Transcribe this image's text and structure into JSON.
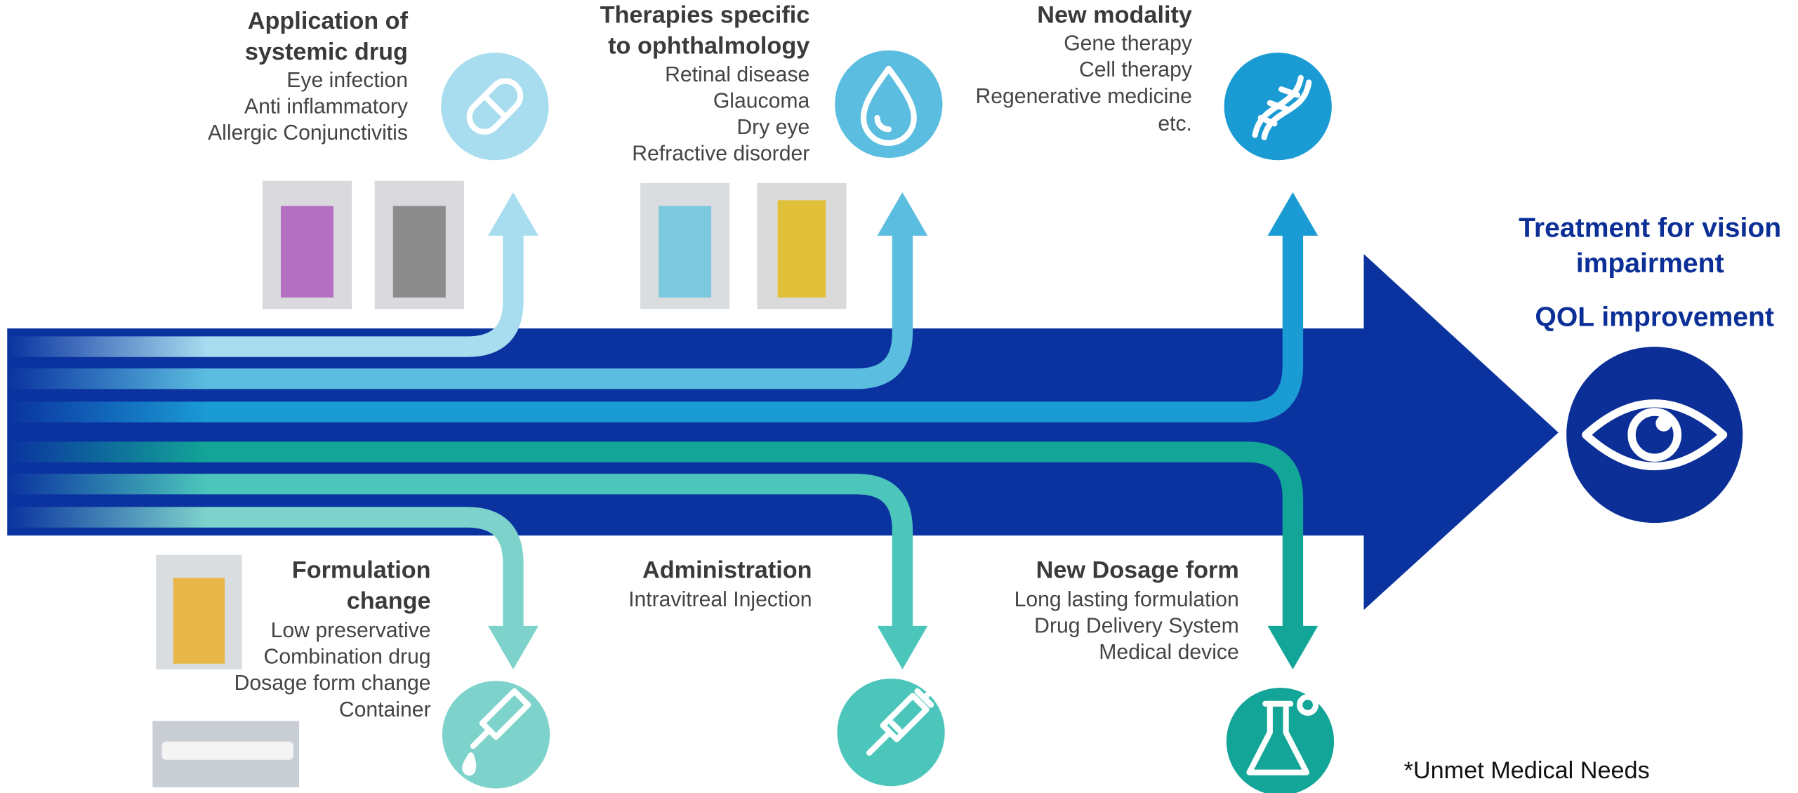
{
  "sections": [
    {
      "title": [
        "Application of",
        "systemic drug"
      ],
      "items": [
        "Eye infection",
        "Anti inflammatory",
        "Allergic Conjunctivitis"
      ]
    },
    {
      "title": [
        "Therapies specific",
        "to ophthalmology"
      ],
      "items": [
        "Retinal disease",
        "Glaucoma",
        "Dry eye",
        "Refractive disorder"
      ]
    },
    {
      "title": [
        "New modality"
      ],
      "items": [
        "Gene therapy",
        "Cell therapy",
        "Regenerative medicine",
        "etc."
      ]
    },
    {
      "title": [
        "Formulation",
        "change"
      ],
      "items": [
        "Low preservative",
        "Combination drug",
        "Dosage form change",
        "Container"
      ]
    },
    {
      "title": [
        "Administration"
      ],
      "items": [
        "Intravitreal Injection"
      ]
    },
    {
      "title": [
        "New Dosage form"
      ],
      "items": [
        "Long lasting formulation",
        "Drug Delivery System",
        "Medical device"
      ]
    }
  ],
  "goal": {
    "lines": [
      "Treatment for vision",
      "impairment",
      "QOL improvement"
    ]
  },
  "footnote": "*Unmet Medical Needs"
}
